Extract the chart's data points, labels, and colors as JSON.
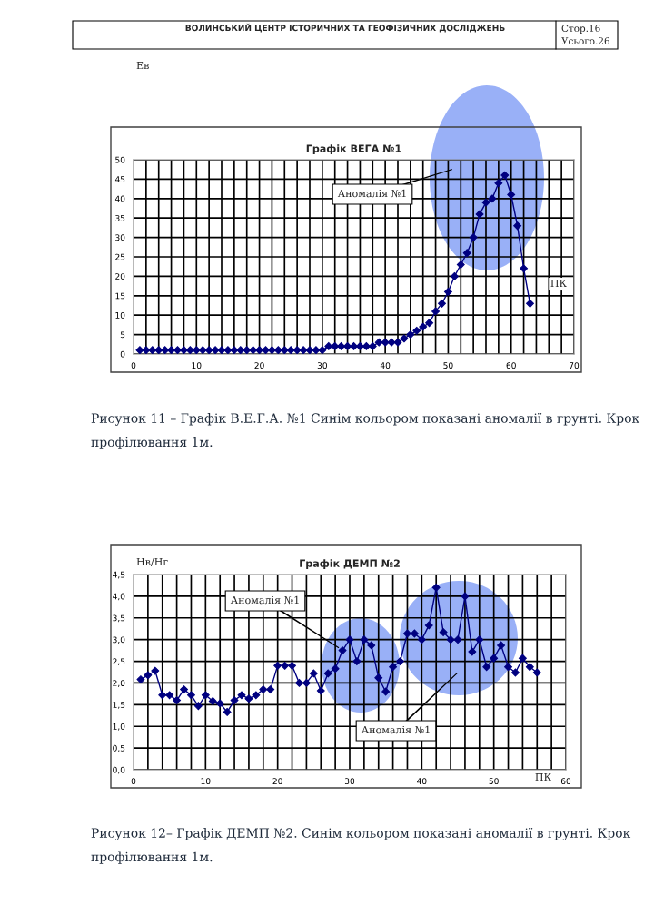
{
  "chart_data": [
    {
      "type": "line",
      "title": "Графік ВЕГА №1",
      "ylabel": "Ев",
      "xlabel": "ПК",
      "x": [
        1,
        2,
        3,
        4,
        5,
        6,
        7,
        8,
        9,
        10,
        11,
        12,
        13,
        14,
        15,
        16,
        17,
        18,
        19,
        20,
        21,
        22,
        23,
        24,
        25,
        26,
        27,
        28,
        29,
        30,
        31,
        32,
        33,
        34,
        35,
        36,
        37,
        38,
        39,
        40,
        41,
        42,
        43,
        44,
        45,
        46,
        47,
        48,
        49,
        50,
        51,
        52,
        53,
        54,
        55,
        56,
        57,
        58,
        59,
        60,
        61,
        62,
        63
      ],
      "series": [
        {
          "color": "#000080",
          "values": [
            1,
            1,
            1,
            1,
            1,
            1,
            1,
            1,
            1,
            1,
            1,
            1,
            1,
            1,
            1,
            1,
            1,
            1,
            1,
            1,
            1,
            1,
            1,
            1,
            1,
            1,
            1,
            1,
            1,
            1,
            2,
            2,
            2,
            2,
            2,
            2,
            2,
            2,
            3,
            3,
            3,
            3,
            4,
            5,
            6,
            7,
            8,
            11,
            13,
            16,
            20,
            23,
            26,
            30,
            36,
            39,
            40,
            44,
            46,
            41,
            33,
            22,
            13
          ]
        }
      ],
      "marker": "diamond",
      "line_style": "solid",
      "grid": true,
      "xlim": [
        0,
        70
      ],
      "ylim": [
        0,
        50
      ],
      "xticks": [
        0,
        {
          "value": 2,
          "label": null
        },
        {
          "value": 4,
          "label": null
        },
        {
          "value": 6,
          "label": null
        },
        {
          "value": 8,
          "label": null
        },
        10,
        {
          "value": 12,
          "label": null
        },
        {
          "value": 14,
          "label": null
        },
        {
          "value": 16,
          "label": null
        },
        {
          "value": 18,
          "label": null
        },
        20,
        {
          "value": 22,
          "label": null
        },
        {
          "value": 24,
          "label": null
        },
        {
          "value": 26,
          "label": null
        },
        {
          "value": 28,
          "label": null
        },
        30,
        {
          "value": 32,
          "label": null
        },
        {
          "value": 34,
          "label": null
        },
        {
          "value": 36,
          "label": null
        },
        {
          "value": 38,
          "label": null
        },
        40,
        {
          "value": 42,
          "label": null
        },
        {
          "value": 44,
          "label": null
        },
        {
          "value": 46,
          "label": null
        },
        {
          "value": 48,
          "label": null
        },
        50,
        {
          "value": 52,
          "label": null
        },
        {
          "value": 54,
          "label": null
        },
        {
          "value": 56,
          "label": null
        },
        {
          "value": 58,
          "label": null
        },
        60,
        {
          "value": 62,
          "label": null
        },
        {
          "value": 64,
          "label": null
        },
        {
          "value": 66,
          "label": null
        },
        {
          "value": 68,
          "label": null
        },
        70
      ],
      "yticks": [
        0,
        5,
        10,
        15,
        20,
        25,
        30,
        35,
        40,
        45,
        50
      ],
      "annotations": [
        "ВОЛИНСЬКИЙ ЦЕНТР ІСТОРИЧНИХ ТА ГЕОФІЗИЧНИХ ДОСЛІДЖЕНЬ",
        "Стор.16",
        "Усього.26",
        "Аномалія №1",
        "Рисунок 11 – Графік В.Е.Г.А. №1 Синім кольором показані аномалії в грунті. Крок профілювання 1м."
      ]
    },
    {
      "type": "line",
      "title": "Графік ДЕМП №2",
      "ylabel": "Нв/Нг",
      "xlabel": "ПК",
      "x": [
        1,
        2,
        3,
        4,
        5,
        6,
        7,
        8,
        9,
        10,
        11,
        12,
        13,
        14,
        15,
        16,
        17,
        18,
        19,
        20,
        21,
        22,
        23,
        24,
        25,
        26,
        27,
        28,
        29,
        30,
        31,
        32,
        33,
        34,
        35,
        36,
        37,
        38,
        39,
        40,
        41,
        42,
        43,
        44,
        45,
        46,
        47,
        48,
        49,
        50,
        51,
        52,
        53,
        54,
        55,
        56
      ],
      "series": [
        {
          "color": "#000080",
          "values": [
            2.08,
            2.18,
            2.28,
            1.72,
            1.72,
            1.6,
            1.85,
            1.72,
            1.47,
            1.72,
            1.58,
            1.53,
            1.33,
            1.6,
            1.72,
            1.64,
            1.72,
            1.85,
            1.85,
            2.4,
            2.4,
            2.4,
            2.0,
            2.0,
            2.22,
            1.82,
            2.22,
            2.33,
            2.75,
            3.0,
            2.5,
            3.0,
            2.87,
            2.12,
            1.8,
            2.37,
            2.5,
            3.14,
            3.14,
            3.0,
            3.33,
            4.2,
            3.17,
            3.0,
            3.0,
            4.0,
            2.72,
            3.0,
            2.37,
            2.57,
            2.87,
            2.37,
            2.24,
            2.57,
            2.37,
            2.24
          ]
        }
      ],
      "marker": "diamond",
      "line_style": "solid",
      "grid": true,
      "xlim": [
        0,
        60
      ],
      "ylim": [
        0,
        4.5
      ],
      "xticks": [
        0,
        {
          "value": 2,
          "label": null
        },
        {
          "value": 4,
          "label": null
        },
        {
          "value": 6,
          "label": null
        },
        {
          "value": 8,
          "label": null
        },
        10,
        {
          "value": 12,
          "label": null
        },
        {
          "value": 14,
          "label": null
        },
        {
          "value": 16,
          "label": null
        },
        {
          "value": 18,
          "label": null
        },
        20,
        {
          "value": 22,
          "label": null
        },
        {
          "value": 24,
          "label": null
        },
        {
          "value": 26,
          "label": null
        },
        {
          "value": 28,
          "label": null
        },
        30,
        {
          "value": 32,
          "label": null
        },
        {
          "value": 34,
          "label": null
        },
        {
          "value": 36,
          "label": null
        },
        {
          "value": 38,
          "label": null
        },
        40,
        {
          "value": 42,
          "label": null
        },
        {
          "value": 44,
          "label": null
        },
        {
          "value": 46,
          "label": null
        },
        {
          "value": 48,
          "label": null
        },
        50,
        {
          "value": 52,
          "label": null
        },
        {
          "value": 54,
          "label": null
        },
        {
          "value": 56,
          "label": null
        },
        {
          "value": 58,
          "label": null
        },
        60
      ],
      "yticks": [
        {
          "value": 0,
          "label": "0,0"
        },
        {
          "value": 0.5,
          "label": "0,5"
        },
        {
          "value": 1,
          "label": "1,0"
        },
        {
          "value": 1.5,
          "label": "1,5"
        },
        {
          "value": 2,
          "label": "2,0"
        },
        {
          "value": 2.5,
          "label": "2,5"
        },
        {
          "value": 3,
          "label": "3,0"
        },
        {
          "value": 3.5,
          "label": "3,5"
        },
        {
          "value": 4,
          "label": "4,0"
        },
        {
          "value": 4.5,
          "label": "4,5"
        }
      ],
      "annotations": [
        "Аномалія №1",
        "Аномалія №1",
        "Рисунок 12– Графік ДЕМП №2. Синім кольором показані аномалії в грунті. Крок профілювання 1м."
      ]
    }
  ]
}
